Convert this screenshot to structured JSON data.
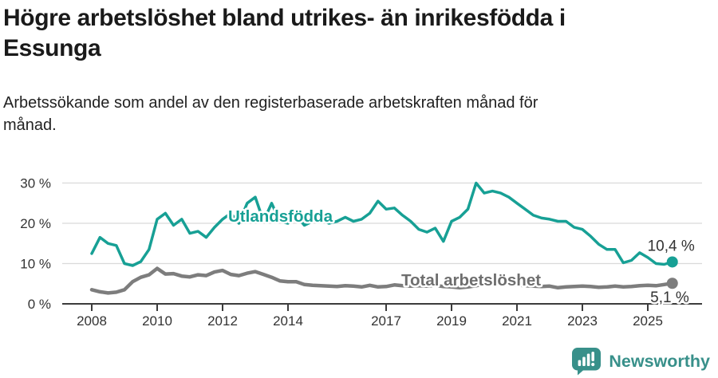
{
  "header": {
    "title_lines": [
      "Högre arbetslöshet bland utrikes- än inrikesfödda i",
      "Essunga"
    ],
    "subtitle_lines": [
      "Arbetssökande som andel av den registerbaserade arbetskraften månad för",
      "månad."
    ]
  },
  "chart_data": {
    "type": "line",
    "title": "Högre arbetslöshet bland utrikes- än inrikesfödda i Essunga",
    "subtitle": "Arbetssökande som andel av den registerbaserade arbetskraften månad för månad.",
    "xlabel": "",
    "ylabel": "",
    "x_unit": "decimal year (quarterly samples of monthly data)",
    "xlim": [
      2007.1,
      2026.7
    ],
    "ylim": [
      0,
      30
    ],
    "grid": "horizontal",
    "legend_position": "inline-labels",
    "x": [
      2008,
      2008.25,
      2008.5,
      2008.75,
      2009,
      2009.25,
      2009.5,
      2009.75,
      2010,
      2010.25,
      2010.5,
      2010.75,
      2011,
      2011.25,
      2011.5,
      2011.75,
      2012,
      2012.25,
      2012.5,
      2012.75,
      2013,
      2013.25,
      2013.5,
      2013.75,
      2014,
      2014.25,
      2014.5,
      2014.75,
      2015,
      2015.25,
      2015.5,
      2015.75,
      2016,
      2016.25,
      2016.5,
      2016.75,
      2017,
      2017.25,
      2017.5,
      2017.75,
      2018,
      2018.25,
      2018.5,
      2018.75,
      2019,
      2019.25,
      2019.5,
      2019.75,
      2020,
      2020.25,
      2020.5,
      2020.75,
      2021,
      2021.25,
      2021.5,
      2021.75,
      2022,
      2022.25,
      2022.5,
      2022.75,
      2023,
      2023.25,
      2023.5,
      2023.75,
      2024,
      2024.25,
      2024.5,
      2024.75,
      2025,
      2025.25,
      2025.5,
      2025.75
    ],
    "series": [
      {
        "name": "Utlandsfödda",
        "color": "#17A095",
        "line_width": 3.5,
        "end_value": 10.4,
        "end_label": "10,4 %",
        "values": [
          12.5,
          16.5,
          15.0,
          14.5,
          10.0,
          9.5,
          10.5,
          13.5,
          21.0,
          22.5,
          19.5,
          21.0,
          17.5,
          18.0,
          16.5,
          19.0,
          21.0,
          22.5,
          20.0,
          25.0,
          26.5,
          20.5,
          25.0,
          20.5,
          20.0,
          22.0,
          19.5,
          20.5,
          21.0,
          20.0,
          20.5,
          21.5,
          20.5,
          21.0,
          22.5,
          25.5,
          23.5,
          23.8,
          22.0,
          20.5,
          18.5,
          17.8,
          18.8,
          15.5,
          20.5,
          21.5,
          23.5,
          30.0,
          27.5,
          28.0,
          27.5,
          26.5,
          25.0,
          23.5,
          22.0,
          21.3,
          21.0,
          20.5,
          20.5,
          19.0,
          18.5,
          16.8,
          14.8,
          13.5,
          13.5,
          10.2,
          10.8,
          12.7,
          11.5,
          10.0,
          9.8,
          10.4
        ]
      },
      {
        "name": "Total arbetslöshet",
        "color": "#7D7D7D",
        "label_color": "#6E6E6E",
        "line_width": 4.5,
        "end_value": 5.1,
        "end_label": "5,1 %",
        "values": [
          3.5,
          3.0,
          2.7,
          2.9,
          3.5,
          5.5,
          6.6,
          7.2,
          8.8,
          7.4,
          7.5,
          6.9,
          6.7,
          7.2,
          7.0,
          7.9,
          8.3,
          7.3,
          7.0,
          7.6,
          8.0,
          7.3,
          6.6,
          5.7,
          5.5,
          5.5,
          4.8,
          4.6,
          4.5,
          4.4,
          4.3,
          4.5,
          4.4,
          4.2,
          4.6,
          4.2,
          4.3,
          4.7,
          4.5,
          4.4,
          4.5,
          4.4,
          4.6,
          4.3,
          4.2,
          4.0,
          4.2,
          4.5,
          5.0,
          5.5,
          5.3,
          5.0,
          4.7,
          4.5,
          4.4,
          4.3,
          4.4,
          4.0,
          4.2,
          4.3,
          4.4,
          4.3,
          4.1,
          4.2,
          4.4,
          4.2,
          4.3,
          4.5,
          4.6,
          4.5,
          4.8,
          5.1
        ]
      }
    ],
    "yticks": [
      {
        "value": 0,
        "label": "0 %"
      },
      {
        "value": 10,
        "label": "10 %"
      },
      {
        "value": 20,
        "label": "20 %"
      },
      {
        "value": 30,
        "label": "30 %"
      }
    ],
    "xticks": [
      {
        "value": 2008,
        "label": "2008"
      },
      {
        "value": 2010,
        "label": "2010"
      },
      {
        "value": 2012,
        "label": "2012"
      },
      {
        "value": 2014,
        "label": "2014"
      },
      {
        "value": 2017,
        "label": "2017"
      },
      {
        "value": 2019,
        "label": "2019"
      },
      {
        "value": 2021,
        "label": "2021"
      },
      {
        "value": 2023,
        "label": "2023"
      },
      {
        "value": 2025,
        "label": "2025"
      }
    ]
  },
  "footer": {
    "brand": "Newsworthy",
    "brand_color": "#38908A"
  }
}
